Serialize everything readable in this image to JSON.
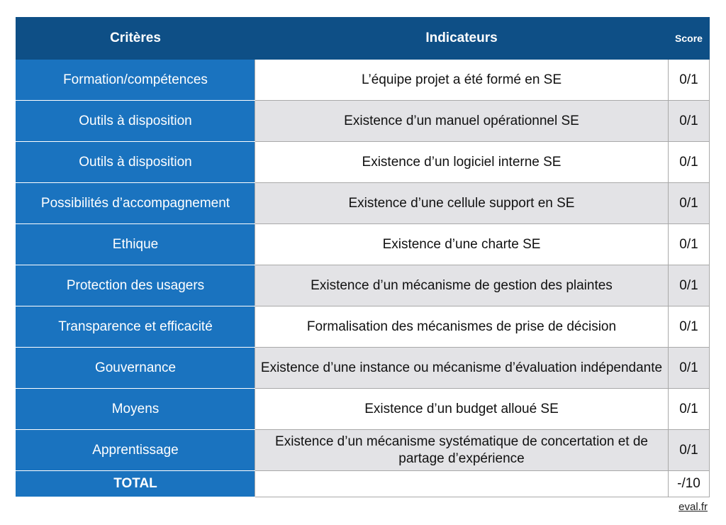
{
  "header": {
    "criteria": "Critères",
    "indicators": "Indicateurs",
    "score": "Score"
  },
  "rows": [
    {
      "criterion": "Formation/compétences",
      "indicator": "L’équipe projet a été formé en SE",
      "score": "0/1"
    },
    {
      "criterion": "Outils à disposition",
      "indicator": "Existence d’un manuel opérationnel SE",
      "score": "0/1"
    },
    {
      "criterion": "Outils à disposition",
      "indicator": "Existence d’un logiciel interne SE",
      "score": "0/1"
    },
    {
      "criterion": "Possibilités d’accompagnement",
      "indicator": "Existence d’une cellule support en SE",
      "score": "0/1"
    },
    {
      "criterion": "Ethique",
      "indicator": "Existence d’une charte SE",
      "score": "0/1"
    },
    {
      "criterion": "Protection des usagers",
      "indicator": "Existence d’un mécanisme de gestion des plaintes",
      "score": "0/1"
    },
    {
      "criterion": "Transparence et efficacité",
      "indicator": "Formalisation des mécanismes de prise de décision",
      "score": "0/1"
    },
    {
      "criterion": "Gouvernance",
      "indicator": "Existence d’une instance ou mécanisme d’évaluation indépendante",
      "score": "0/1"
    },
    {
      "criterion": "Moyens",
      "indicator": "Existence d’un budget alloué SE",
      "score": "0/1"
    },
    {
      "criterion": "Apprentissage",
      "indicator": "Existence d’un mécanisme systématique de concertation et de partage d’expérience",
      "score": "0/1"
    }
  ],
  "total": {
    "label": "TOTAL",
    "score": "-/10"
  },
  "footer": {
    "source": "eval.fr"
  },
  "colors": {
    "header_bg": "#0e4f86",
    "criteria_bg": "#1a73bf",
    "alt_row_bg": "#e3e3e6"
  }
}
